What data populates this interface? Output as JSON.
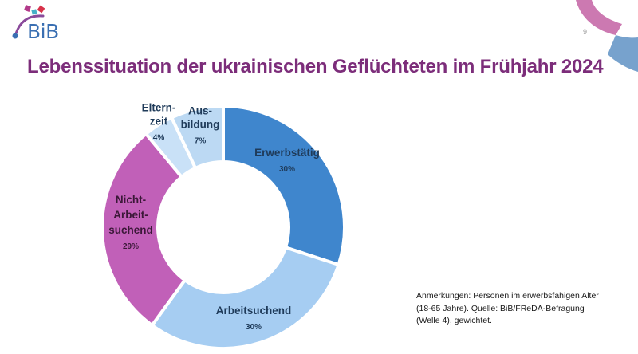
{
  "logo": {
    "text": "BiB"
  },
  "slide": {
    "page_number": "9"
  },
  "note": "Anmerkungen: Personen im erwerbsfähigen Alter (18-65 Jahre). Quelle: BiB/FReDA-Befragung (Welle 4), gewichtet.",
  "chart_data": {
    "type": "pie",
    "donut": true,
    "title": "Lebenssituation der ukrainischen Geflüchteten im Frühjahr 2024",
    "start_angle_deg": 0,
    "direction": "clockwise",
    "slices": [
      {
        "label_lines": [
          "Erwerbstätig"
        ],
        "value": 30,
        "value_label": "30%",
        "color": "#3f86cd",
        "text_color": "#1f3b5a"
      },
      {
        "label_lines": [
          "Arbeitsuchend"
        ],
        "value": 30,
        "value_label": "30%",
        "color": "#a6cdf2",
        "text_color": "#1f3b5a"
      },
      {
        "label_lines": [
          "Nicht-",
          "Arbeit-",
          "suchend"
        ],
        "value": 29,
        "value_label": "29%",
        "color": "#c160b8",
        "text_color": "#3b1838"
      },
      {
        "label_lines": [
          "Eltern-",
          "zeit"
        ],
        "value": 4,
        "value_label": "4%",
        "color": "#c9e1f7",
        "text_color": "#1f3b5a"
      },
      {
        "label_lines": [
          "Aus-",
          "bildung"
        ],
        "value": 7,
        "value_label": "7%",
        "color": "#bcd9f3",
        "text_color": "#1f3b5a"
      }
    ]
  }
}
